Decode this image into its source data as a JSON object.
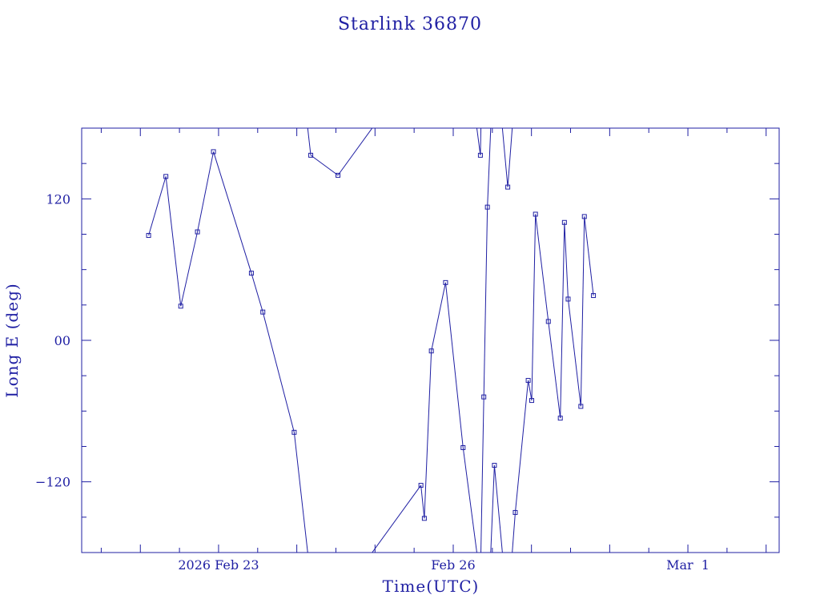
{
  "chart_data": {
    "type": "scatter",
    "title": "Starlink 36870",
    "xlabel": "Time(UTC)",
    "ylabel": "Long E (deg)",
    "xlim": [
      "2026-02-21T06:00",
      "2026-03-02T04:00"
    ],
    "ylim": [
      -180,
      180
    ],
    "x_ticks": [
      {
        "x": "2026-02-23T00:00",
        "label": "2026 Feb 23"
      },
      {
        "x": "2026-02-26T00:00",
        "label": "Feb 26"
      },
      {
        "x": "2026-03-01T00:00",
        "label": "Mar  1"
      }
    ],
    "y_ticks": [
      {
        "y": 120,
        "label": "120"
      },
      {
        "y": 0,
        "label": "00"
      },
      {
        "y": -120,
        "label": "−120"
      }
    ],
    "wrap_longitude": true,
    "line_segments_style": "connected, wrapping at ±180",
    "grid": false,
    "legend": "none",
    "colors": {
      "line": "#1f1fa3",
      "marker": "#1f1fa3",
      "axes": "#1f1fa3",
      "background": "#ffffff"
    },
    "series": [
      {
        "points": [
          [
            "2026-02-22T02:32",
            89
          ],
          [
            "2026-02-22T07:50",
            139
          ],
          [
            "2026-02-22T12:24",
            29
          ],
          [
            "2026-02-22T17:31",
            92
          ],
          [
            "2026-02-22T22:26",
            160
          ],
          [
            "2026-02-23T10:04",
            57
          ],
          [
            "2026-02-23T13:35",
            24
          ],
          [
            "2026-02-23T23:12",
            -78
          ],
          [
            "2026-02-24T04:17",
            157
          ],
          [
            "2026-02-24T12:38",
            140
          ],
          [
            "2026-02-25T14:05",
            -123
          ],
          [
            "2026-02-25T15:08",
            -151
          ],
          [
            "2026-02-25T17:17",
            -9
          ],
          [
            "2026-02-25T21:39",
            49
          ],
          [
            "2026-02-26T03:01",
            -91
          ],
          [
            "2026-02-26T08:20",
            157
          ],
          [
            "2026-02-26T09:23",
            -48
          ],
          [
            "2026-02-26T10:29",
            113
          ],
          [
            "2026-02-26T12:38",
            -106
          ],
          [
            "2026-02-26T16:44",
            130
          ],
          [
            "2026-02-26T19:02",
            -146
          ],
          [
            "2026-02-26T23:00",
            -34
          ],
          [
            "2026-02-27T00:05",
            -51
          ],
          [
            "2026-02-27T01:14",
            107
          ],
          [
            "2026-02-27T05:11",
            16
          ],
          [
            "2026-02-27T08:51",
            -66
          ],
          [
            "2026-02-27T10:07",
            100
          ],
          [
            "2026-02-27T11:15",
            35
          ],
          [
            "2026-02-27T15:09",
            -56
          ],
          [
            "2026-02-27T16:14",
            105
          ],
          [
            "2026-02-27T19:01",
            38
          ]
        ]
      }
    ]
  }
}
